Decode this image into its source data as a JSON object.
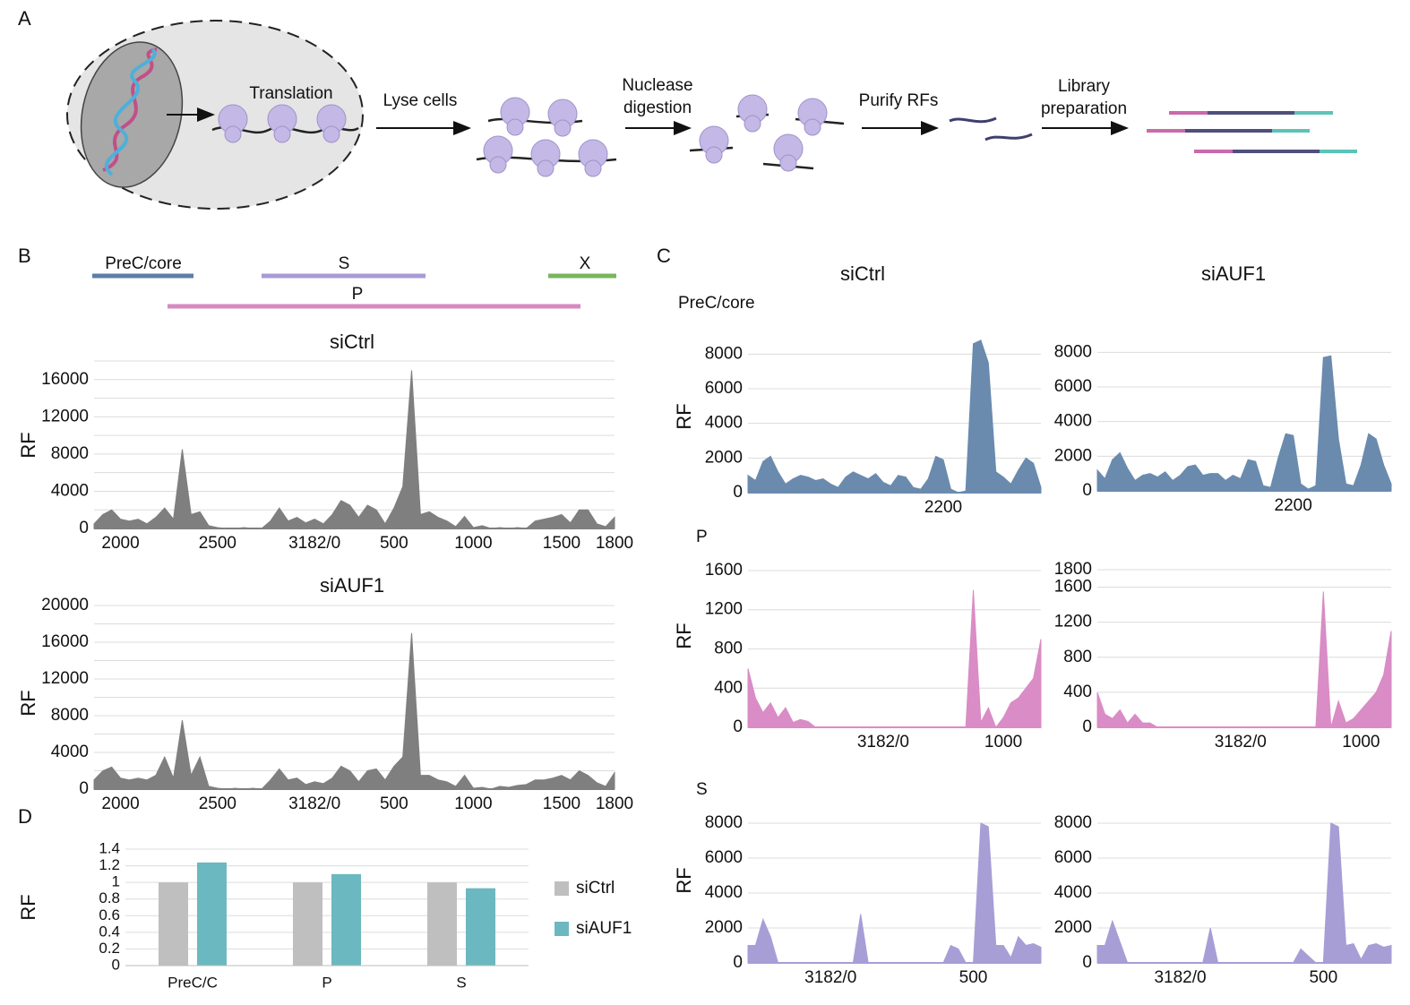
{
  "panel_labels": [
    "A",
    "B",
    "C",
    "D"
  ],
  "diagram": {
    "steps": [
      [
        "Translation"
      ],
      [
        "Lyse cells"
      ],
      [
        "Nuclease",
        "digestion"
      ],
      [
        "Purify RFs"
      ],
      [
        "Library",
        "preparation"
      ]
    ]
  },
  "genome_map": {
    "regions": [
      {
        "label": "PreC/core",
        "color": "#5b7fa8"
      },
      {
        "label": "S",
        "color": "#a99bd4"
      },
      {
        "label": "X",
        "color": "#7ab55c"
      },
      {
        "label": "P",
        "color": "#d58bc0"
      }
    ]
  },
  "panel_c": {
    "column_titles": [
      "siCtrl",
      "siAUF1"
    ],
    "row_titles": [
      "PreC/core",
      "P",
      "S"
    ]
  },
  "chart_data": [
    {
      "type": "area",
      "title": "siCtrl",
      "y_label": "RF",
      "color": "#7f7f7f",
      "grid": true,
      "ylim": [
        0,
        18000
      ],
      "yticks": [
        0,
        4000,
        8000,
        12000,
        16000
      ],
      "ygrid_minor": [
        2000,
        6000,
        10000,
        14000,
        18000
      ],
      "categories": [
        null,
        null,
        null,
        "2000",
        null,
        null,
        null,
        null,
        null,
        null,
        null,
        null,
        null,
        null,
        "2500",
        null,
        null,
        null,
        null,
        null,
        null,
        null,
        null,
        null,
        null,
        "3182/0",
        null,
        null,
        null,
        null,
        null,
        null,
        null,
        null,
        "500",
        null,
        null,
        null,
        null,
        null,
        null,
        null,
        null,
        "1000",
        null,
        null,
        null,
        null,
        null,
        null,
        null,
        null,
        null,
        "1500",
        null,
        null,
        null,
        null,
        null,
        "1800"
      ],
      "values": [
        500,
        1500,
        2000,
        1000,
        800,
        1000,
        500,
        1200,
        2200,
        1000,
        8500,
        1500,
        1800,
        300,
        100,
        0,
        0,
        100,
        0,
        0,
        800,
        2200,
        800,
        1200,
        600,
        1000,
        500,
        1500,
        3000,
        2500,
        1200,
        2500,
        2000,
        500,
        2200,
        4500,
        17000,
        1500,
        1800,
        1200,
        800,
        200,
        1300,
        100,
        300,
        0,
        100,
        0,
        100,
        0,
        800,
        1000,
        1200,
        1500,
        600,
        2000,
        2000,
        500,
        200,
        1200
      ]
    },
    {
      "type": "area",
      "title": "siAUF1",
      "y_label": "RF",
      "color": "#7f7f7f",
      "grid": true,
      "ylim": [
        0,
        20000
      ],
      "yticks": [
        0,
        4000,
        8000,
        12000,
        16000,
        20000
      ],
      "ygrid_minor": [
        2000,
        6000,
        10000,
        14000,
        18000
      ],
      "categories": [
        null,
        null,
        null,
        "2000",
        null,
        null,
        null,
        null,
        null,
        null,
        null,
        null,
        null,
        null,
        "2500",
        null,
        null,
        null,
        null,
        null,
        null,
        null,
        null,
        null,
        null,
        "3182/0",
        null,
        null,
        null,
        null,
        null,
        null,
        null,
        null,
        "500",
        null,
        null,
        null,
        null,
        null,
        null,
        null,
        null,
        "1000",
        null,
        null,
        null,
        null,
        null,
        null,
        null,
        null,
        null,
        "1500",
        null,
        null,
        null,
        null,
        null,
        "1800"
      ],
      "values": [
        1000,
        2000,
        2400,
        1200,
        1000,
        1200,
        1000,
        1500,
        3500,
        1200,
        7500,
        1500,
        3500,
        300,
        100,
        0,
        100,
        0,
        100,
        0,
        1000,
        2200,
        1000,
        1200,
        500,
        800,
        600,
        1200,
        2500,
        2000,
        800,
        2000,
        2200,
        1000,
        2500,
        3500,
        17000,
        1500,
        1500,
        1000,
        800,
        300,
        1500,
        100,
        200,
        0,
        300,
        200,
        400,
        500,
        1000,
        1000,
        1200,
        1500,
        1000,
        2000,
        1500,
        700,
        300,
        1800
      ]
    },
    {
      "type": "area",
      "y_label": "RF",
      "color": "#6a8bae",
      "grid": true,
      "ylim": [
        0,
        9000
      ],
      "yticks": [
        0,
        2000,
        4000,
        6000,
        8000
      ],
      "categories": [
        null,
        null,
        null,
        null,
        null,
        null,
        null,
        null,
        null,
        null,
        null,
        null,
        null,
        null,
        null,
        null,
        null,
        null,
        null,
        null,
        null,
        null,
        null,
        null,
        null,
        null,
        "2200",
        null,
        null,
        null,
        null,
        null,
        null,
        null,
        null,
        null,
        null,
        null,
        null,
        null
      ],
      "values": [
        1000,
        700,
        1800,
        2100,
        1200,
        500,
        800,
        1000,
        900,
        700,
        800,
        500,
        300,
        900,
        1200,
        1000,
        800,
        1100,
        600,
        400,
        1000,
        900,
        300,
        200,
        800,
        2100,
        1900,
        200,
        0,
        100,
        8600,
        8800,
        7500,
        1200,
        900,
        500,
        1300,
        2000,
        1700,
        300
      ]
    },
    {
      "type": "area",
      "color": "#6a8bae",
      "grid": true,
      "ylim": [
        0,
        9000
      ],
      "yticks": [
        0,
        2000,
        4000,
        6000,
        8000
      ],
      "categories": [
        null,
        null,
        null,
        null,
        null,
        null,
        null,
        null,
        null,
        null,
        null,
        null,
        null,
        null,
        null,
        null,
        null,
        null,
        null,
        null,
        null,
        null,
        null,
        null,
        null,
        null,
        "2200",
        null,
        null,
        null,
        null,
        null,
        null,
        null,
        null,
        null,
        null,
        null,
        null,
        null
      ],
      "values": [
        1200,
        700,
        1800,
        2200,
        1300,
        600,
        900,
        1000,
        800,
        1100,
        600,
        900,
        1400,
        1500,
        900,
        1000,
        1000,
        600,
        900,
        700,
        1800,
        1700,
        300,
        200,
        1900,
        3300,
        3200,
        400,
        100,
        300,
        7700,
        7800,
        3000,
        400,
        300,
        1500,
        3300,
        3000,
        1500,
        400
      ]
    },
    {
      "type": "area",
      "y_label": "RF",
      "color": "#d98cc5",
      "grid": true,
      "ylim": [
        0,
        1700
      ],
      "yticks": [
        0,
        400,
        800,
        1200,
        1600
      ],
      "categories": [
        null,
        null,
        null,
        null,
        null,
        null,
        null,
        null,
        null,
        null,
        null,
        null,
        null,
        null,
        null,
        null,
        null,
        null,
        "3182/0",
        null,
        null,
        null,
        null,
        null,
        null,
        null,
        null,
        null,
        null,
        null,
        null,
        null,
        null,
        null,
        "1000",
        null,
        null,
        null,
        null,
        null
      ],
      "values": [
        600,
        300,
        150,
        250,
        100,
        200,
        50,
        80,
        60,
        0,
        0,
        0,
        0,
        0,
        0,
        0,
        0,
        0,
        0,
        0,
        0,
        0,
        0,
        0,
        0,
        0,
        0,
        0,
        0,
        0,
        1400,
        50,
        200,
        0,
        100,
        250,
        300,
        400,
        500,
        900
      ]
    },
    {
      "type": "area",
      "color": "#d98cc5",
      "grid": true,
      "ylim": [
        0,
        1800
      ],
      "yticks": [
        0,
        400,
        800,
        1200,
        1600,
        1800
      ],
      "categories": [
        null,
        null,
        null,
        null,
        null,
        null,
        null,
        null,
        null,
        null,
        null,
        null,
        null,
        null,
        null,
        null,
        null,
        null,
        null,
        "3182/0",
        null,
        null,
        null,
        null,
        null,
        null,
        null,
        null,
        null,
        null,
        null,
        null,
        null,
        null,
        null,
        "1000",
        null,
        null,
        null,
        null
      ],
      "values": [
        400,
        150,
        100,
        200,
        50,
        150,
        50,
        50,
        0,
        0,
        0,
        0,
        0,
        0,
        0,
        0,
        0,
        0,
        0,
        0,
        0,
        0,
        0,
        0,
        0,
        0,
        0,
        0,
        0,
        0,
        1550,
        0,
        300,
        50,
        100,
        200,
        300,
        400,
        600,
        1100
      ]
    },
    {
      "type": "area",
      "y_label": "RF",
      "color": "#a79ed6",
      "grid": true,
      "ylim": [
        0,
        8000
      ],
      "yticks": [
        0,
        2000,
        4000,
        6000,
        8000
      ],
      "categories": [
        null,
        null,
        null,
        null,
        null,
        null,
        null,
        null,
        null,
        null,
        null,
        "3182/0",
        null,
        null,
        null,
        null,
        null,
        null,
        null,
        null,
        null,
        null,
        null,
        null,
        null,
        null,
        null,
        null,
        null,
        null,
        "500",
        null,
        null,
        null,
        null,
        null,
        null,
        null,
        null,
        null
      ],
      "values": [
        1000,
        1000,
        2500,
        1500,
        0,
        0,
        0,
        0,
        0,
        0,
        0,
        0,
        0,
        0,
        0,
        2800,
        0,
        0,
        0,
        0,
        0,
        0,
        0,
        0,
        0,
        0,
        0,
        1000,
        800,
        0,
        0,
        8000,
        7800,
        1000,
        1000,
        300,
        1500,
        1000,
        1100,
        900
      ]
    },
    {
      "type": "area",
      "color": "#a79ed6",
      "grid": true,
      "ylim": [
        0,
        8000
      ],
      "yticks": [
        0,
        2000,
        4000,
        6000,
        8000
      ],
      "categories": [
        null,
        null,
        null,
        null,
        null,
        null,
        null,
        null,
        null,
        null,
        null,
        "3182/0",
        null,
        null,
        null,
        null,
        null,
        null,
        null,
        null,
        null,
        null,
        null,
        null,
        null,
        null,
        null,
        null,
        null,
        null,
        "500",
        null,
        null,
        null,
        null,
        null,
        null,
        null,
        null,
        null
      ],
      "values": [
        1000,
        1000,
        2400,
        1200,
        0,
        0,
        0,
        0,
        0,
        0,
        0,
        0,
        0,
        0,
        0,
        2000,
        0,
        0,
        0,
        0,
        0,
        0,
        0,
        0,
        0,
        0,
        0,
        800,
        400,
        0,
        0,
        8000,
        7800,
        1000,
        1100,
        200,
        1000,
        1100,
        900,
        1000
      ]
    },
    {
      "type": "bar",
      "y_label": "RF",
      "grid": true,
      "categories": [
        "PreC/C",
        "P",
        "S"
      ],
      "series": [
        {
          "name": "siCtrl",
          "color": "#bfbfbf",
          "values": [
            1,
            1,
            1
          ]
        },
        {
          "name": "siAUF1",
          "color": "#6cb8c0",
          "values": [
            1.24,
            1.1,
            0.93
          ]
        }
      ],
      "ylim": [
        0,
        1.4
      ],
      "yticks": [
        0,
        0.2,
        0.4,
        0.6,
        0.8,
        1,
        1.2,
        1.4
      ]
    }
  ]
}
